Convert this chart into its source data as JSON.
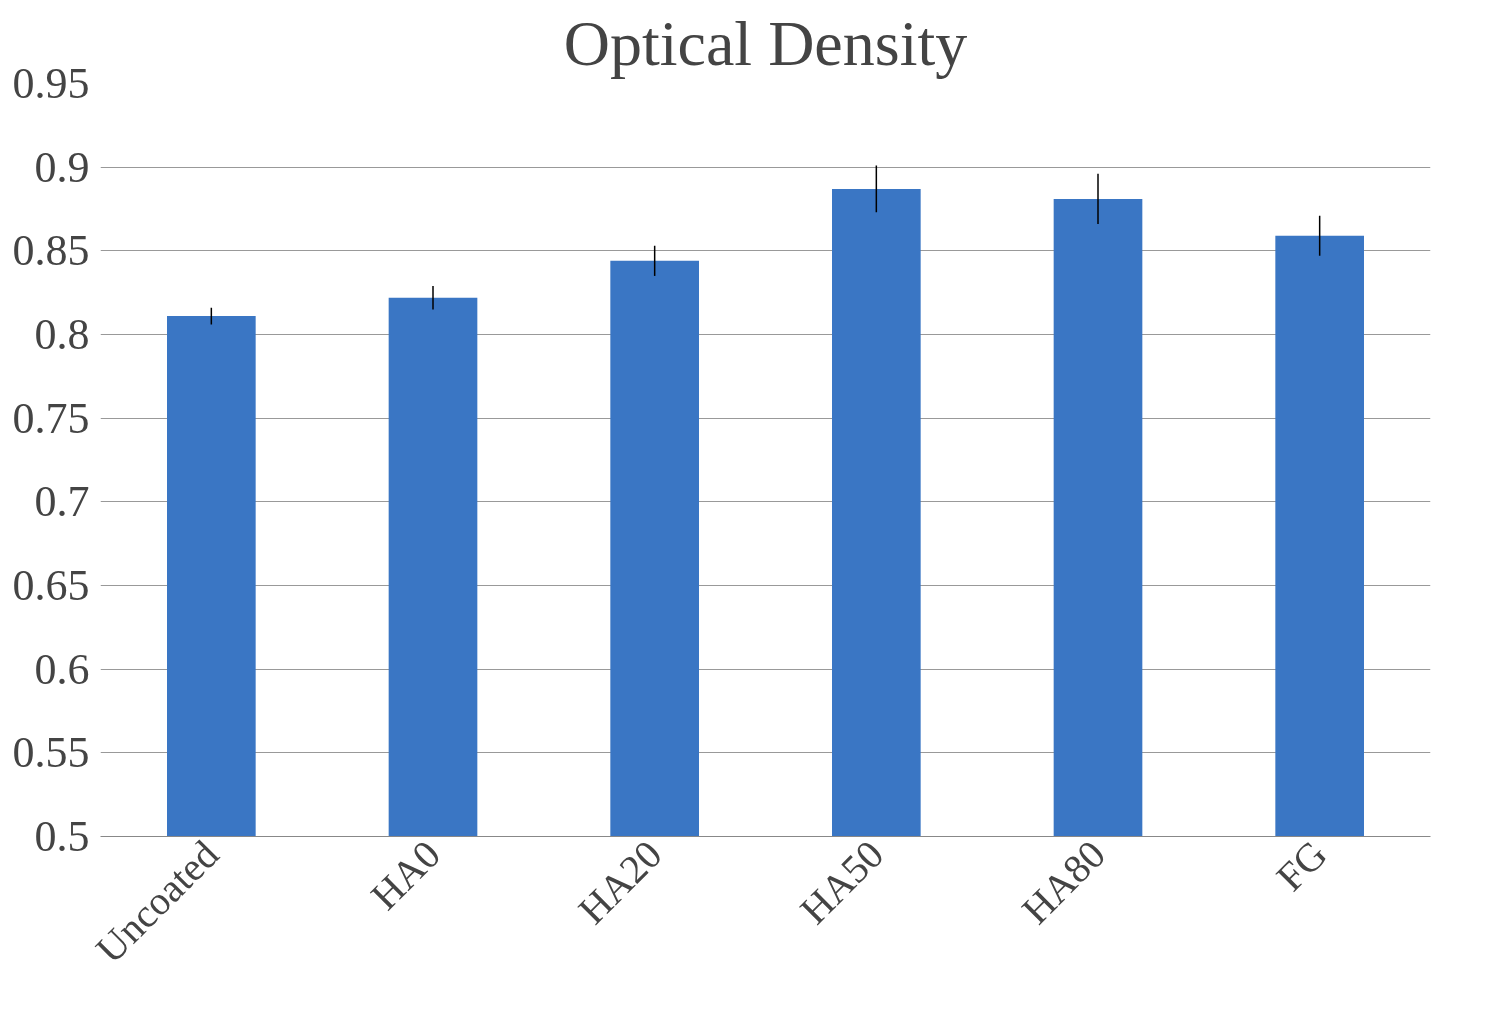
{
  "chart_data": {
    "type": "bar",
    "title": "Optical Density",
    "categories": [
      "Uncoated",
      "HA0",
      "HA20",
      "HA50",
      "HA80",
      "FG"
    ],
    "values": [
      0.811,
      0.822,
      0.844,
      0.887,
      0.881,
      0.859
    ],
    "errors": [
      0.005,
      0.007,
      0.009,
      0.014,
      0.015,
      0.012
    ],
    "color": "#3a76c4",
    "ylim": [
      0.5,
      0.95
    ],
    "yticks": [
      0.5,
      0.55,
      0.6,
      0.65,
      0.7,
      0.75,
      0.8,
      0.85,
      0.9,
      0.95
    ],
    "grid": "y"
  }
}
